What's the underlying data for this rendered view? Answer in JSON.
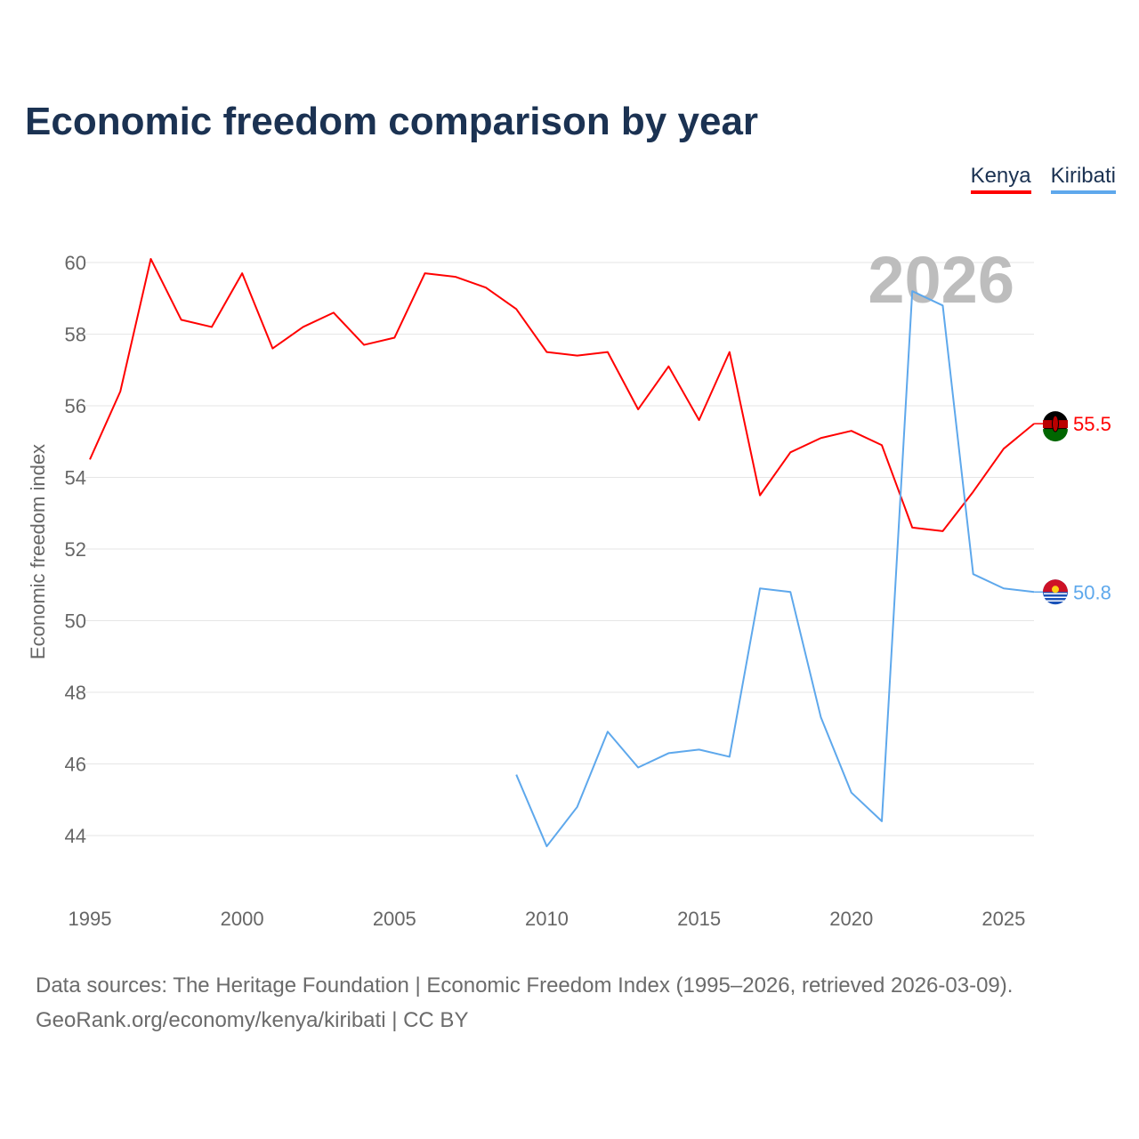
{
  "chart_data": {
    "type": "line",
    "title": "Economic freedom comparison by year",
    "xlabel": "",
    "ylabel": "Economic freedom index",
    "xlim": [
      1995,
      2026
    ],
    "ylim": [
      43,
      60.5
    ],
    "x_ticks": [
      "1995",
      "2000",
      "2005",
      "2010",
      "2015",
      "2020",
      "2025"
    ],
    "y_ticks": [
      "44",
      "46",
      "48",
      "50",
      "52",
      "54",
      "56",
      "58",
      "60"
    ],
    "grid": true,
    "legend_position": "top-right",
    "watermark_year": "2026",
    "series": [
      {
        "name": "Kenya",
        "color": "#ff0000",
        "end_label": "55.5",
        "x": [
          1995,
          1996,
          1997,
          1998,
          1999,
          2000,
          2001,
          2002,
          2003,
          2004,
          2005,
          2006,
          2007,
          2008,
          2009,
          2010,
          2011,
          2012,
          2013,
          2014,
          2015,
          2016,
          2017,
          2018,
          2019,
          2020,
          2021,
          2022,
          2023,
          2024,
          2025,
          2026
        ],
        "values": [
          54.5,
          56.4,
          60.1,
          58.4,
          58.2,
          59.7,
          57.6,
          58.2,
          58.6,
          57.7,
          57.9,
          59.7,
          59.6,
          59.3,
          58.7,
          57.5,
          57.4,
          57.5,
          55.9,
          57.1,
          55.6,
          57.5,
          53.5,
          54.7,
          55.1,
          55.3,
          54.9,
          52.6,
          52.5,
          53.6,
          54.8,
          55.5
        ]
      },
      {
        "name": "Kiribati",
        "color": "#5ea8ec",
        "end_label": "50.8",
        "x": [
          2009,
          2010,
          2011,
          2012,
          2013,
          2014,
          2015,
          2016,
          2017,
          2018,
          2019,
          2020,
          2021,
          2022,
          2023,
          2024,
          2025,
          2026
        ],
        "values": [
          45.7,
          43.7,
          44.8,
          46.9,
          45.9,
          46.3,
          46.4,
          46.2,
          50.9,
          50.8,
          47.3,
          45.2,
          44.4,
          59.2,
          58.8,
          51.3,
          50.9,
          50.8
        ]
      }
    ]
  },
  "footer": {
    "line1": "Data sources: The Heritage Foundation | Economic Freedom Index (1995–2026, retrieved 2026-03-09).",
    "line2": "GeoRank.org/economy/kenya/kiribati | CC BY"
  }
}
